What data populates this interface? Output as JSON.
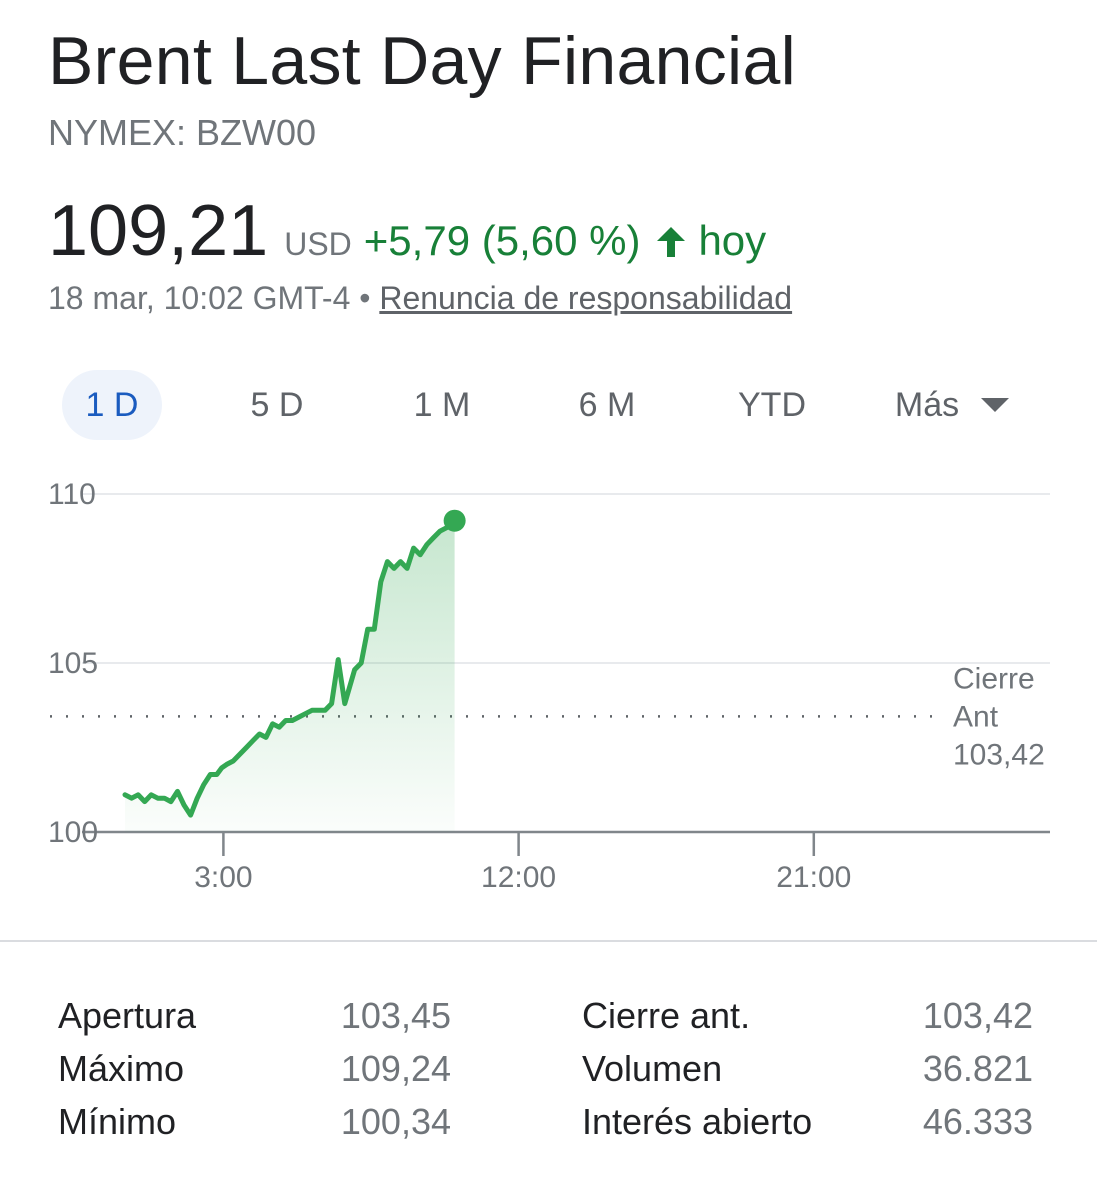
{
  "header": {
    "title": "Brent Last Day Financial",
    "ticker": "NYMEX: BZW00"
  },
  "quote": {
    "price": "109,21",
    "currency": "USD",
    "change": "+5,79 (5,60 %)",
    "period": "hoy",
    "timestamp": "18 mar, 10:02 GMT-4",
    "separator": "•",
    "disclaimer": "Renuncia de responsabilidad"
  },
  "tabs": [
    {
      "label": "1 D",
      "active": true
    },
    {
      "label": "5 D",
      "active": false
    },
    {
      "label": "1 M",
      "active": false
    },
    {
      "label": "6 M",
      "active": false
    },
    {
      "label": "YTD",
      "active": false
    },
    {
      "label": "Más",
      "active": false
    }
  ],
  "colors": {
    "positive": "#188038",
    "line": "#34a853",
    "active_tab": "#1a5bbf"
  },
  "chart_data": {
    "type": "area",
    "y_ticks": [
      "110",
      "105",
      "100"
    ],
    "x_ticks": [
      {
        "label": "3:00",
        "hour": 3
      },
      {
        "label": "12:00",
        "hour": 12
      },
      {
        "label": "21:00",
        "hour": 21
      }
    ],
    "ylim": [
      100,
      110
    ],
    "xlim_hours": [
      0,
      25.75
    ],
    "grid": true,
    "prev_close": {
      "label_lines": [
        "Cierre",
        "Ant",
        "103,42"
      ],
      "value": 103.42
    },
    "series": [
      {
        "x_hours": [
          0,
          0.2,
          0.4,
          0.6,
          0.8,
          1.0,
          1.2,
          1.4,
          1.6,
          1.8,
          2.0,
          2.2,
          2.4,
          2.6,
          2.8,
          2.95,
          3.1,
          3.3,
          3.5,
          3.7,
          3.9,
          4.1,
          4.3,
          4.5,
          4.7,
          4.9,
          5.1,
          5.3,
          5.5,
          5.7,
          5.9,
          6.1,
          6.3,
          6.5,
          6.7,
          6.85,
          7.0,
          7.2,
          7.4,
          7.6,
          7.8,
          8.0,
          8.2,
          8.4,
          8.6,
          8.8,
          9.0,
          9.2,
          9.4,
          9.6,
          9.8,
          10.05
        ],
        "values": [
          101.1,
          101.0,
          101.1,
          100.9,
          101.1,
          101.0,
          101.0,
          100.9,
          101.2,
          100.8,
          100.5,
          101.0,
          101.4,
          101.7,
          101.7,
          101.9,
          102.0,
          102.1,
          102.3,
          102.5,
          102.7,
          102.9,
          102.8,
          103.2,
          103.1,
          103.3,
          103.3,
          103.4,
          103.5,
          103.6,
          103.6,
          103.6,
          103.8,
          105.1,
          103.8,
          104.3,
          104.8,
          105.0,
          106.0,
          106.0,
          107.4,
          108.0,
          107.8,
          108.0,
          107.8,
          108.4,
          108.2,
          108.5,
          108.7,
          108.9,
          109.0,
          109.21
        ]
      }
    ]
  },
  "stats": {
    "left": [
      {
        "label": "Apertura",
        "value": "103,45"
      },
      {
        "label": "Máximo",
        "value": "109,24"
      },
      {
        "label": "Mínimo",
        "value": "100,34"
      }
    ],
    "right": [
      {
        "label": "Cierre ant.",
        "value": "103,42"
      },
      {
        "label": "Volumen",
        "value": "36.821"
      },
      {
        "label": "Interés abierto",
        "value": "46.333"
      }
    ]
  }
}
